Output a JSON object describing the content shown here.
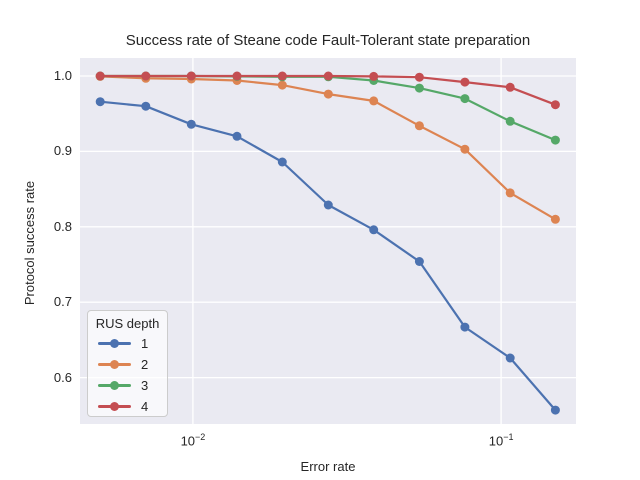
{
  "figure": {
    "title": "Success rate of Steane code Fault-Tolerant state preparation",
    "background": "#ffffff",
    "plot_background": "#eaeaf2",
    "grid_color": "#ffffff",
    "text_color": "#262626"
  },
  "axes": {
    "x": {
      "label": "Error rate",
      "scale": "log",
      "ticks": [
        {
          "label_base": "10",
          "label_exp": "−2",
          "value": 0.01
        },
        {
          "label_base": "10",
          "label_exp": "−1",
          "value": 0.1
        }
      ]
    },
    "y": {
      "label": "Protocol success rate",
      "ticks": [
        {
          "label": "1.0",
          "value": 1.0
        },
        {
          "label": "0.9",
          "value": 0.9
        },
        {
          "label": "0.8",
          "value": 0.8
        },
        {
          "label": "0.7",
          "value": 0.7
        },
        {
          "label": "0.6",
          "value": 0.6
        }
      ]
    }
  },
  "legend": {
    "title": "RUS depth",
    "items": [
      {
        "label": "1",
        "color": "#4c72b0"
      },
      {
        "label": "2",
        "color": "#dd8452"
      },
      {
        "label": "3",
        "color": "#55a868"
      },
      {
        "label": "4",
        "color": "#c44e52"
      }
    ]
  },
  "chart_data": {
    "type": "line",
    "title": "Success rate of Steane code Fault-Tolerant state preparation",
    "xlabel": "Error rate",
    "ylabel": "Protocol success rate",
    "xscale": "log",
    "xlim": [
      0.0043,
      0.175
    ],
    "ylim": [
      0.5385,
      1.0239
    ],
    "grid": true,
    "legend_title": "RUS depth",
    "legend_position": "lower left",
    "x": [
      0.005,
      0.00703,
      0.00988,
      0.0139,
      0.0195,
      0.0275,
      0.0386,
      0.0543,
      0.0763,
      0.107,
      0.15
    ],
    "series": [
      {
        "name": "1",
        "color": "#4c72b0",
        "values": [
          0.966,
          0.96,
          0.936,
          0.92,
          0.886,
          0.829,
          0.796,
          0.754,
          0.667,
          0.626,
          0.557
        ]
      },
      {
        "name": "2",
        "color": "#dd8452",
        "values": [
          0.9995,
          0.997,
          0.996,
          0.994,
          0.988,
          0.976,
          0.967,
          0.934,
          0.903,
          0.845,
          0.81
        ]
      },
      {
        "name": "3",
        "color": "#55a868",
        "values": [
          1.0,
          1.0,
          1.0,
          0.9995,
          0.999,
          0.999,
          0.994,
          0.984,
          0.97,
          0.94,
          0.915
        ]
      },
      {
        "name": "4",
        "color": "#c44e52",
        "values": [
          1.0,
          1.0,
          1.0,
          1.0,
          1.0,
          1.0,
          0.9995,
          0.9985,
          0.992,
          0.985,
          0.962
        ]
      }
    ]
  }
}
